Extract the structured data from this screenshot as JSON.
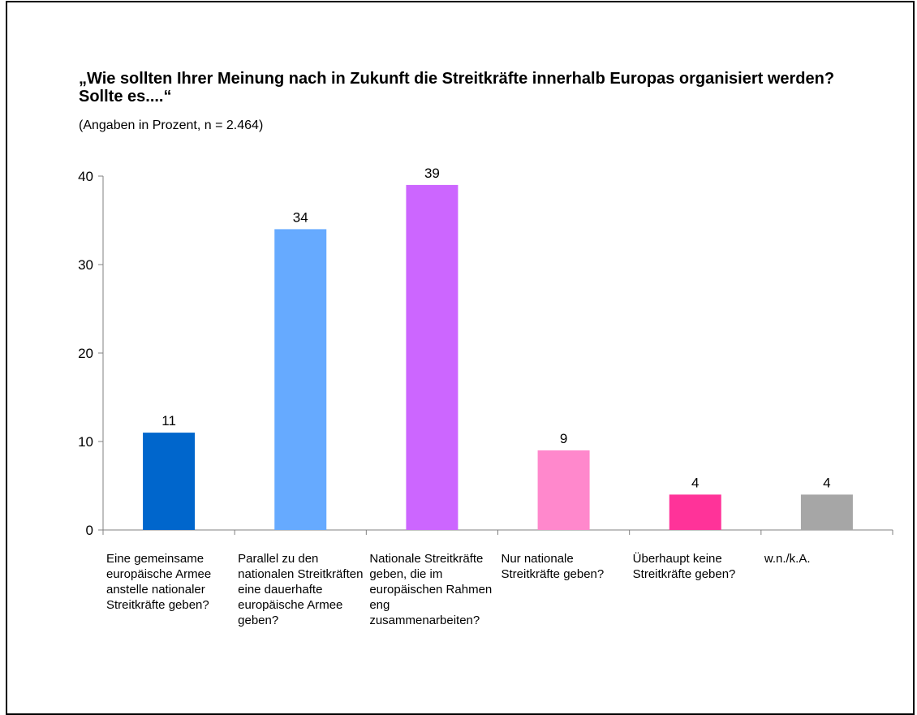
{
  "title": "„Wie sollten Ihrer Meinung nach in Zukunft die Streitkräfte innerhalb Europas organisiert werden? Sollte es....“",
  "subtitle": "(Angaben in Prozent, n = 2.464)",
  "chart_data": {
    "type": "bar",
    "title": "„Wie sollten Ihrer Meinung nach in Zukunft die Streitkräfte innerhalb Europas organisiert werden? Sollte es....“",
    "subtitle": "(Angaben in Prozent, n = 2.464)",
    "categories": [
      "Eine gemeinsame europäische Armee anstelle nationaler Streitkräfte geben?",
      "Parallel zu den nationalen Streitkräften eine dauerhafte europäische Armee geben?",
      "Nationale Streitkräfte geben, die im europäischen Rahmen eng zusammenarbeiten?",
      "Nur nationale Streitkräfte geben?",
      "Überhaupt keine Streitkräfte geben?",
      "w.n./k.A."
    ],
    "values": [
      11,
      34,
      39,
      9,
      4,
      4
    ],
    "colors": [
      "#0066cc",
      "#66aaff",
      "#cc66ff",
      "#ff88cc",
      "#ff3399",
      "#a6a6a6"
    ],
    "ylim": [
      0,
      40
    ],
    "yticks": [
      0,
      10,
      20,
      30,
      40
    ],
    "xlabel": "",
    "ylabel": "",
    "grid": false,
    "data_labels": true
  }
}
